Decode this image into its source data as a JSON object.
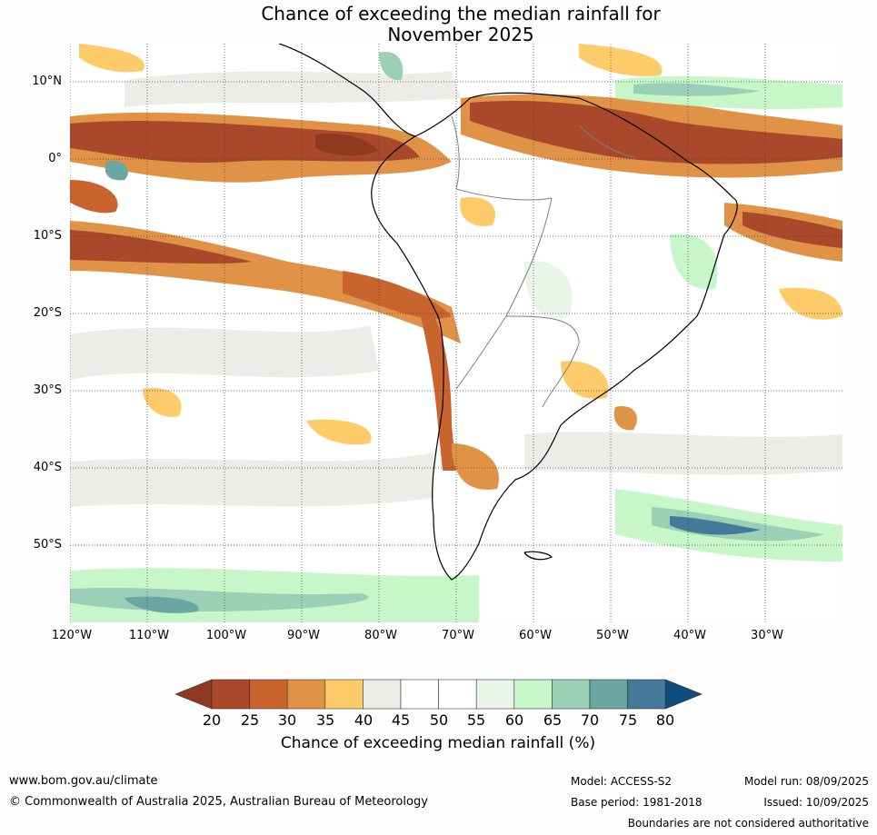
{
  "title": {
    "line1": "Chance of exceeding the median rainfall for",
    "line2": "November 2025"
  },
  "map": {
    "lat_labels": [
      "10°N",
      "0°",
      "10°S",
      "20°S",
      "30°S",
      "40°S",
      "50°S"
    ],
    "lon_labels": [
      "120°W",
      "110°W",
      "100°W",
      "90°W",
      "80°W",
      "70°W",
      "60°W",
      "50°W",
      "40°W",
      "30°W"
    ],
    "gridlines": true
  },
  "colorbar": {
    "ticks": [
      "20",
      "25",
      "30",
      "35",
      "40",
      "45",
      "50",
      "55",
      "60",
      "65",
      "70",
      "75",
      "80"
    ],
    "colors": [
      "#8f3a20",
      "#a9482a",
      "#c9642f",
      "#e09247",
      "#fdcb6a",
      "#eeece8",
      "#ffffff",
      "#ffffff",
      "#e8f5e8",
      "#c7f6c8",
      "#9bcfb6",
      "#6aa7a3",
      "#437a99",
      "#0f4d7e"
    ],
    "label": "Chance of exceeding median rainfall (%)"
  },
  "footer": {
    "url": "www.bom.gov.au/climate",
    "copyright": "© Commonwealth of Australia 2025, Australian Bureau of Meteorology",
    "model": "Model: ACCESS-S2",
    "base_period": "Base period: 1981-2018",
    "model_run": "Model run: 08/09/2025",
    "issued": "Issued: 10/09/2025",
    "disclaimer": "Boundaries are not considered authoritative"
  }
}
